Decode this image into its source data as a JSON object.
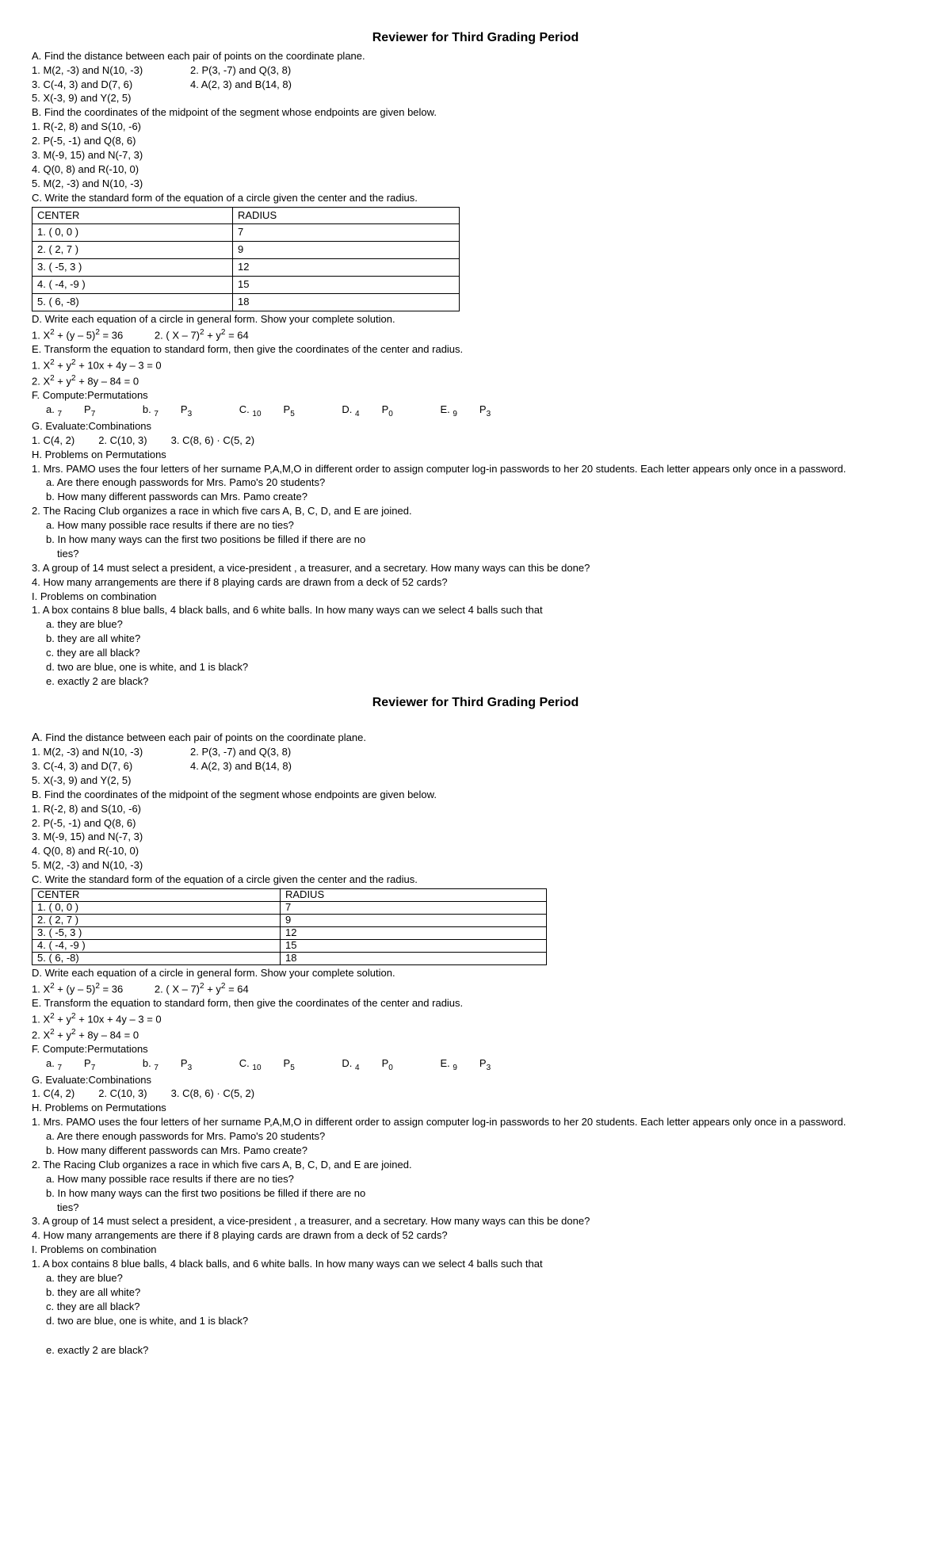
{
  "title": "Reviewer for Third Grading Period",
  "A": {
    "heading": "A.  Find the distance between each pair of points on the coordinate plane.",
    "r1a": "1. M(2, -3) and N(10, -3)",
    "r1b": "2. P(3, -7) and Q(3, 8)",
    "r2a": "3. C(-4, 3) and D(7, 6)",
    "r2b": "4. A(2, 3) and B(14, 8)",
    "r3": "5. X(-3, 9) and Y(2, 5)"
  },
  "B": {
    "heading": "B.  Find the coordinates of the midpoint of the segment whose endpoints are given below.",
    "i1": "1. R(-2, 8) and S(10, -6)",
    "i2": "2. P(-5, -1) and Q(8, 6)",
    "i3": "3. M(-9, 15) and N(-7, 3)",
    "i4": "4. Q(0, 8) and R(-10, 0)",
    "i5": "5. M(2, -3) and N(10, -3)"
  },
  "C": {
    "heading": "C.  Write the standard form of the equation of a circle given the center and the radius.",
    "col1": "CENTER",
    "col2": "RADIUS",
    "rows": [
      {
        "c": "1. ( 0, 0 )",
        "r": "7"
      },
      {
        "c": "2. ( 2, 7 )",
        "r": "9"
      },
      {
        "c": "3. ( -5, 3 )",
        "r": "12"
      },
      {
        "c": "4. ( -4, -9 )",
        "r": "15"
      },
      {
        "c": "5. ( 6, -8)",
        "r": "18"
      }
    ]
  },
  "D": {
    "heading": "D. Write each equation of a circle in general form. Show your complete solution."
  },
  "E": {
    "heading": "E.  Transform the equation to standard form, then give the coordinates of the center and radius."
  },
  "F": {
    "heading": "F.  Compute:Permutations"
  },
  "G": {
    "heading": "G.  Evaluate:Combinations",
    "c1": "1. C(4, 2)",
    "c2": "2. C(10, 3)",
    "c3": "3. C(8, 6) · C(5, 2)"
  },
  "H": {
    "heading": "H. Problems on Permutations",
    "p1": "1. Mrs. PAMO uses the four letters of her surname P,A,M,O in different order to assign computer log-in passwords to her 20 students. Each letter appears only once in a password.",
    "p1a": "a. Are there enough passwords for Mrs. Pamo's 20 students?",
    "p1b": "b. How many different passwords can Mrs. Pamo create?",
    "p2": "2. The Racing Club organizes a race in which five cars A, B, C, D, and E are joined.",
    "p2a": "a. How many possible race results if there are no ties?",
    "p2b": "b. In how many ways can the first two positions be filled if there are no",
    "p2b2": "ties?",
    "p3": "3. A group of 14 must select a president, a vice-president , a treasurer, and a secretary. How many ways can this be done?",
    "p4": "4. How many arrangements are there if 8 playing cards are drawn from a deck of 52 cards?"
  },
  "I": {
    "heading": "I. Problems on combination",
    "p1": "1. A box contains 8 blue balls,  4 black balls, and 6 white balls. In how many ways can we select 4 balls such that",
    "a": "a. they are blue?",
    "b": "b. they are all white?",
    "c": "c. they are all black?",
    "d": "d. two are blue, one is white, and 1 is black?",
    "e": "e. exactly 2 are black?"
  }
}
